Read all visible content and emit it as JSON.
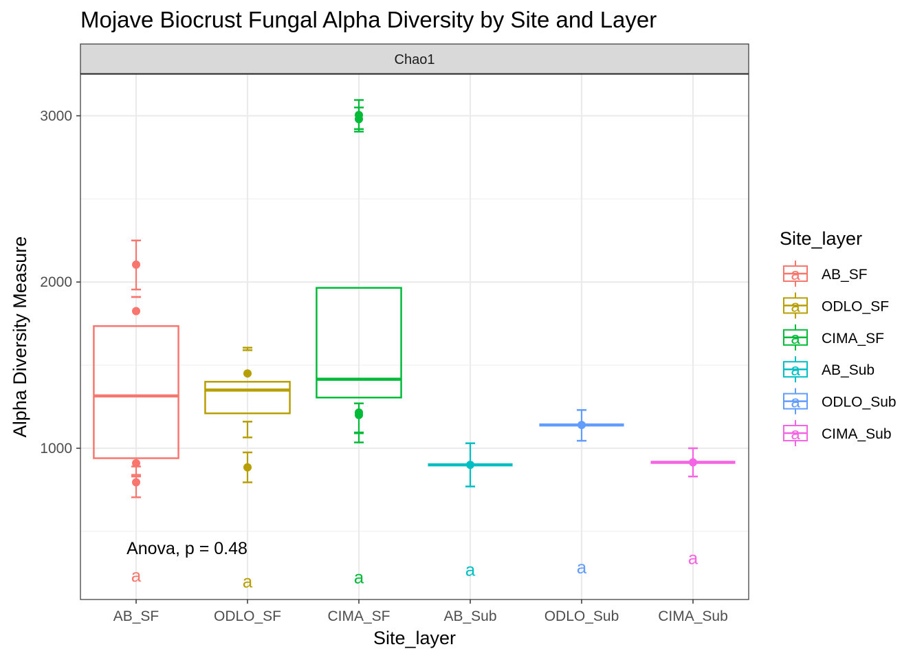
{
  "chart_data": {
    "type": "box",
    "title": "Mojave Biocrust Fungal Alpha Diversity by Site and Layer",
    "facet_label": "Chao1",
    "xlabel": "Site_layer",
    "ylabel": "Alpha Diversity Measure",
    "ylim": [
      90,
      3250
    ],
    "yticks": [
      1000,
      2000,
      3000
    ],
    "grid": true,
    "legend": {
      "title": "Site_layer",
      "position": "right"
    },
    "annotation": "Anova, p = 0.48",
    "categories": [
      "AB_SF",
      "ODLO_SF",
      "CIMA_SF",
      "AB_Sub",
      "ODLO_Sub",
      "CIMA_Sub"
    ],
    "series": [
      {
        "name": "AB_SF",
        "color": "#F8766D",
        "box": {
          "q1": 940,
          "median": 1315,
          "q3": 1735
        },
        "points": [
          {
            "y": 2105,
            "err": [
              1955,
              2250
            ]
          },
          {
            "y": 1825,
            "err": [
              1910,
              1910
            ]
          },
          {
            "y": 910,
            "err": [
              840,
              890
            ]
          },
          {
            "y": 795,
            "err": [
              705,
              830
            ]
          }
        ],
        "letter": "a",
        "letter_y": 235
      },
      {
        "name": "ODLO_SF",
        "color": "#B79F00",
        "box": {
          "q1": 1210,
          "median": 1350,
          "q3": 1400
        },
        "points": [
          {
            "y": 1450,
            "err": [
              1590,
              1605
            ]
          },
          {
            "y": 885,
            "err": [
              795,
              975
            ]
          }
        ],
        "extra_bars": [
          1160,
          1065
        ],
        "letter": "a",
        "letter_y": 200
      },
      {
        "name": "CIMA_SF",
        "color": "#00BA38",
        "box": {
          "q1": 1305,
          "median": 1415,
          "q3": 1965
        },
        "points": [
          {
            "y": 3005,
            "err": [
              2905,
              3095
            ]
          },
          {
            "y": 2980,
            "err": [
              2920,
              3050
            ]
          },
          {
            "y": 1215,
            "err": [
              1095,
              1270
            ]
          },
          {
            "y": 1200,
            "err": [
              1035,
              1090
            ]
          }
        ],
        "letter": "a",
        "letter_y": 225
      },
      {
        "name": "AB_Sub",
        "color": "#00BFC4",
        "box": {
          "q1": 900,
          "median": 900,
          "q3": 900
        },
        "points": [
          {
            "y": 900,
            "err": [
              770,
              1030
            ]
          }
        ],
        "letter": "a",
        "letter_y": 270
      },
      {
        "name": "ODLO_Sub",
        "color": "#619CFF",
        "box": {
          "q1": 1140,
          "median": 1140,
          "q3": 1140
        },
        "points": [
          {
            "y": 1140,
            "err": [
              1045,
              1230
            ]
          }
        ],
        "letter": "a",
        "letter_y": 285
      },
      {
        "name": "CIMA_Sub",
        "color": "#F564E3",
        "box": {
          "q1": 915,
          "median": 915,
          "q3": 915
        },
        "points": [
          {
            "y": 915,
            "err": [
              830,
              1000
            ]
          }
        ],
        "letter": "a",
        "letter_y": 340
      }
    ]
  }
}
